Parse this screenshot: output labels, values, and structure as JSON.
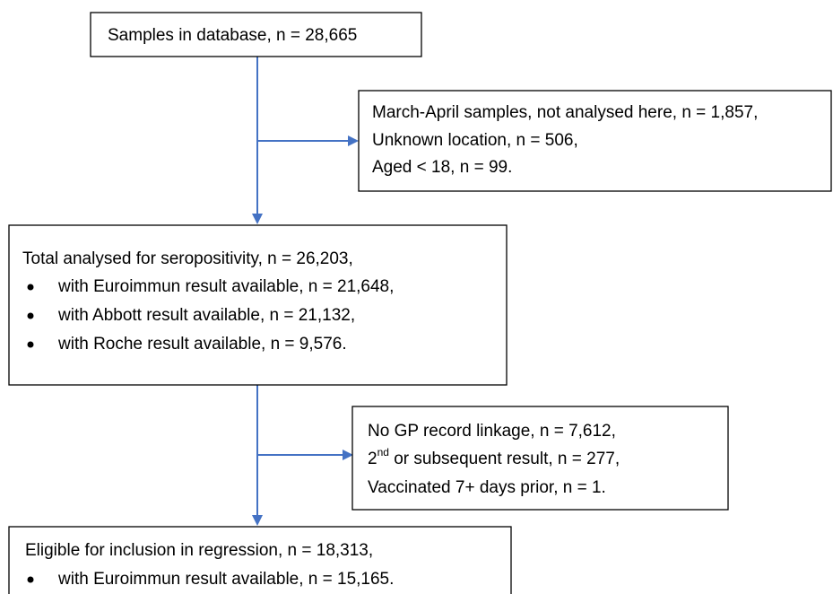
{
  "nodes": [
    {
      "lines": [
        "Samples in database, n = 28,665"
      ]
    },
    {
      "lines": [
        "March-April samples, not analysed here, n = 1,857,",
        "Unknown location, n = 506,",
        "Aged < 18, n = 99."
      ]
    },
    {
      "lines": [
        "Total analysed for seropositivity, n = 26,203,"
      ],
      "bullets": [
        "with Euroimmun result available, n = 21,648,",
        "with Abbott result available, n = 21,132,",
        "with Roche result available, n = 9,576."
      ]
    },
    {
      "lines": [
        "No GP record linkage, n = 7,612,",
        "Vaccinated 7+ days prior, n = 1."
      ],
      "superscript_line": {
        "base": "2",
        "sup": "nd",
        "rest": " or subsequent result, n = 277,"
      }
    },
    {
      "lines": [
        "Eligible for inclusion in regression, n = 18,313,"
      ],
      "bullets": [
        "with Euroimmun result available, n = 15,165."
      ]
    }
  ]
}
